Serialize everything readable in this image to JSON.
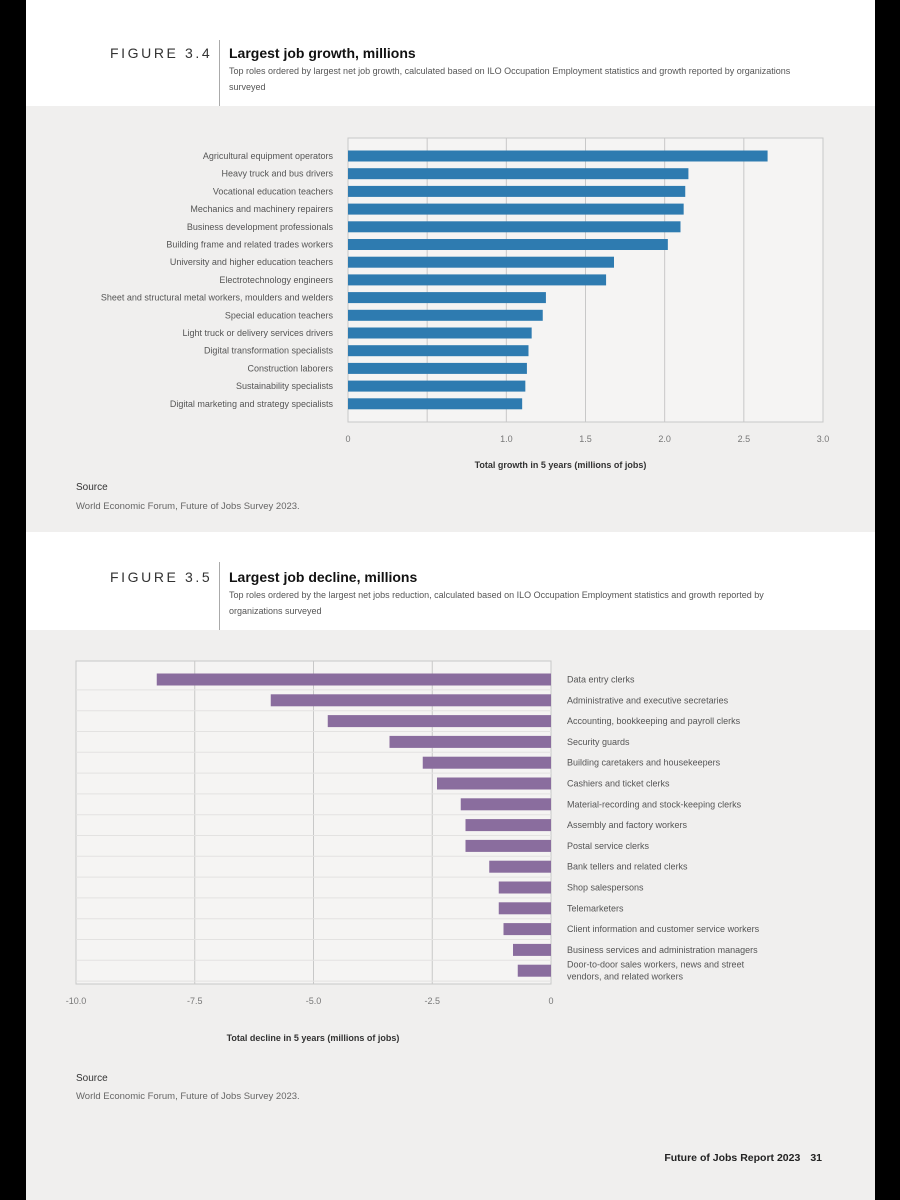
{
  "figures": [
    {
      "label": "FIGURE 3.4",
      "title": "Largest job growth, millions",
      "subtitle": "Top roles ordered by largest net job growth, calculated based on ILO Occupation Employment statistics and growth reported by organizations surveyed",
      "source_heading": "Source",
      "source_text": "World Economic Forum, Future of Jobs Survey 2023."
    },
    {
      "label": "FIGURE 3.5",
      "title": "Largest job decline, millions",
      "subtitle": "Top roles ordered by the largest net jobs reduction, calculated based on ILO Occupation Employment statistics and growth reported by organizations surveyed",
      "source_heading": "Source",
      "source_text": "World Economic Forum, Future of Jobs Survey 2023."
    }
  ],
  "footer": {
    "report": "Future of Jobs Report 2023",
    "page": "31"
  },
  "chart_data": [
    {
      "type": "bar",
      "orientation": "horizontal",
      "title": "Largest job growth, millions",
      "xlabel": "Total growth in 5 years (millions of jobs)",
      "ylabel": "",
      "xlim": [
        0,
        3.0
      ],
      "ticks": [
        0,
        0.5,
        1.0,
        1.5,
        2.0,
        2.5,
        3.0
      ],
      "tick_labels": [
        "0",
        "",
        "1.0",
        "1.5",
        "2.0",
        "2.5",
        "3.0"
      ],
      "grid": true,
      "color": "#2e7bb0",
      "categories": [
        "Agricultural equipment operators",
        "Heavy truck and bus drivers",
        "Vocational education teachers",
        "Mechanics and machinery repairers",
        "Business development professionals",
        "Building frame and related trades workers",
        "University and higher education teachers",
        "Electrotechnology engineers",
        "Sheet and structural metal workers, moulders and welders",
        "Special education teachers",
        "Light truck or delivery services drivers",
        "Digital transformation specialists",
        "Construction laborers",
        "Sustainability specialists",
        "Digital marketing and strategy specialists"
      ],
      "values": [
        2.65,
        2.15,
        2.13,
        2.12,
        2.1,
        2.02,
        1.68,
        1.63,
        1.25,
        1.23,
        1.16,
        1.14,
        1.13,
        1.12,
        1.1
      ]
    },
    {
      "type": "bar",
      "orientation": "horizontal",
      "title": "Largest job decline, millions",
      "xlabel": "Total decline in 5 years (millions of jobs)",
      "ylabel": "",
      "xlim": [
        -10.0,
        0
      ],
      "ticks": [
        -10.0,
        -7.5,
        -5.0,
        -2.5,
        0
      ],
      "tick_labels": [
        "-10.0",
        "-7.5",
        "-5.0",
        "-2.5",
        "0"
      ],
      "grid": true,
      "color": "#8a6d9e",
      "categories": [
        "Data entry clerks",
        "Administrative and executive secretaries",
        "Accounting, bookkeeping and payroll clerks",
        "Security guards",
        "Building caretakers and housekeepers",
        "Cashiers and ticket clerks",
        "Material-recording and stock-keeping clerks",
        "Assembly and factory workers",
        "Postal service clerks",
        "Bank tellers and related clerks",
        "Shop salespersons",
        "Telemarketers",
        "Client information and customer service workers",
        "Business services and administration managers",
        "Door-to-door sales workers, news and street vendors, and related workers"
      ],
      "values": [
        -8.3,
        -5.9,
        -4.7,
        -3.4,
        -2.7,
        -2.4,
        -1.9,
        -1.8,
        -1.8,
        -1.3,
        -1.1,
        -1.1,
        -1.0,
        -0.8,
        -0.7
      ]
    }
  ]
}
